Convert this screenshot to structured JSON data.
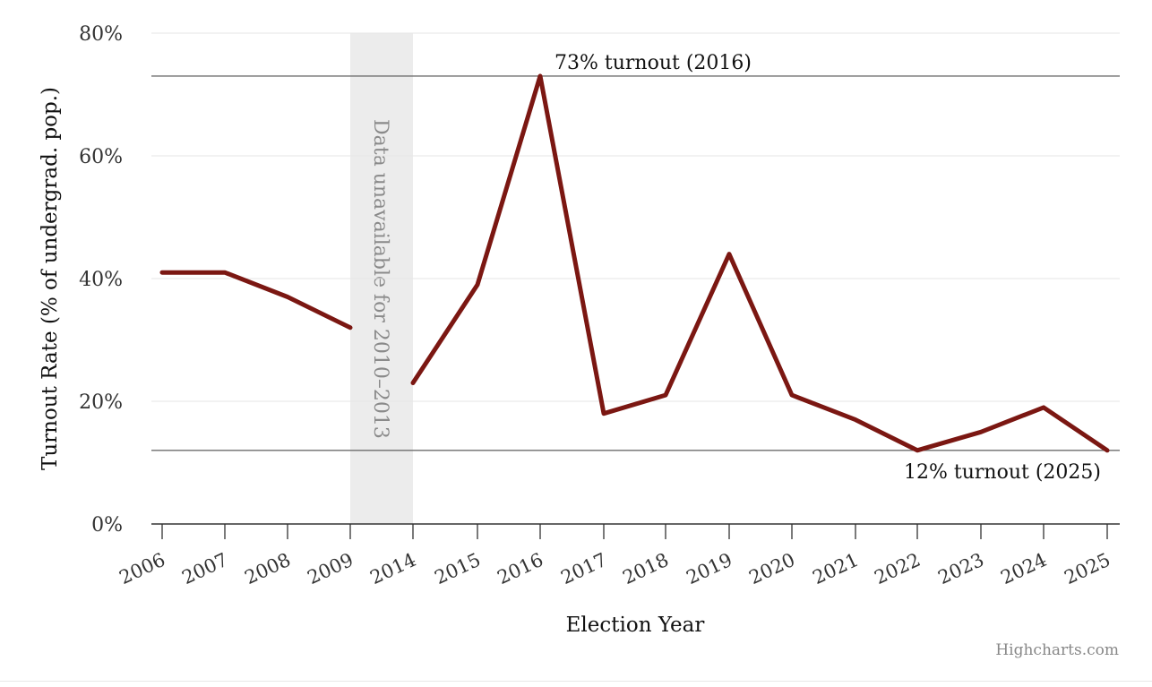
{
  "chart_data": {
    "type": "line",
    "xlabel": "Election Year",
    "ylabel": "Turnout Rate (% of undergrad. pop.)",
    "categories": [
      "2006",
      "2007",
      "2008",
      "2009",
      "2014",
      "2015",
      "2016",
      "2017",
      "2018",
      "2019",
      "2020",
      "2021",
      "2022",
      "2023",
      "2024",
      "2025"
    ],
    "series": [
      {
        "values": [
          41,
          41,
          37,
          32,
          null,
          39,
          73,
          18,
          21,
          44,
          21,
          17,
          12,
          15,
          19,
          12
        ],
        "color": "#7b1712"
      }
    ],
    "segment_breaks": [
      {
        "segment": [
          0,
          3
        ]
      },
      {
        "start_index": 4,
        "start_value": 23,
        "segment": [
          4,
          15
        ]
      }
    ],
    "ylim": [
      0,
      80
    ],
    "yticks": [
      0,
      20,
      40,
      60,
      80
    ],
    "ytick_labels": [
      "0%",
      "20%",
      "40%",
      "60%",
      "80%"
    ],
    "grid": true,
    "plot_band": {
      "from_index": 3,
      "to_index": 4,
      "label": "Data unavailable for 2010–2013",
      "color": "#ececec"
    },
    "plot_lines": [
      {
        "value": 73,
        "label": "73% turnout (2016)",
        "align": "left"
      },
      {
        "value": 12,
        "label": "12% turnout (2025)",
        "align": "right"
      }
    ],
    "credits": "Highcharts.com"
  }
}
